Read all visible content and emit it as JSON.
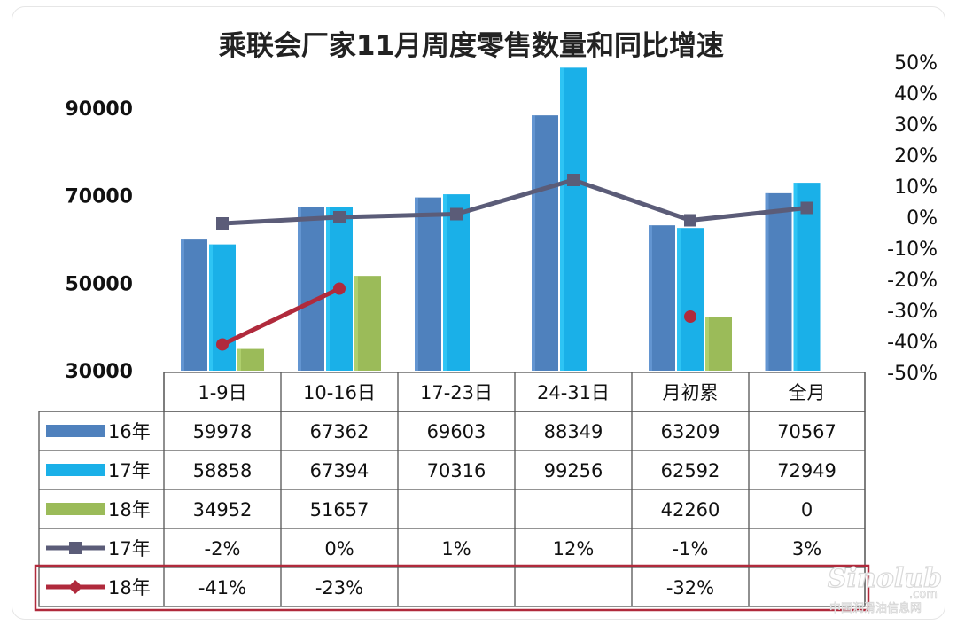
{
  "chart_data": {
    "type": "bar",
    "title": "乘联会厂家11月周度零售数量和同比增速",
    "categories": [
      "1-9日",
      "10-16日",
      "17-23日",
      "24-31日",
      "月初累",
      "全月"
    ],
    "y_axis": {
      "ticks": [
        "30000",
        "50000",
        "70000",
        "90000"
      ],
      "ylim": [
        30000,
        100000
      ]
    },
    "y2_axis": {
      "ticks": [
        "50%",
        "40%",
        "30%",
        "20%",
        "10%",
        "0%",
        "-10%",
        "-20%",
        "-30%",
        "-40%",
        "-50%"
      ],
      "ylim": [
        -50,
        50
      ]
    },
    "grid": false,
    "legend": "table",
    "series": [
      {
        "name": "16年",
        "kind": "bar",
        "color": "#4f81bd",
        "values": [
          59978,
          67362,
          69603,
          88349,
          63209,
          70567
        ],
        "labels": [
          "59978",
          "67362",
          "69603",
          "88349",
          "63209",
          "70567"
        ]
      },
      {
        "name": "17年",
        "kind": "bar",
        "color": "#1ab0e8",
        "values": [
          58858,
          67394,
          70316,
          99256,
          62592,
          72949
        ],
        "labels": [
          "58858",
          "67394",
          "70316",
          "99256",
          "62592",
          "72949"
        ]
      },
      {
        "name": "18年",
        "kind": "bar",
        "color": "#9bbb59",
        "values": [
          34952,
          51657,
          null,
          null,
          42260,
          0
        ],
        "labels": [
          "34952",
          "51657",
          "",
          "",
          "42260",
          "0"
        ]
      },
      {
        "name": "17年",
        "kind": "line",
        "marker": "square",
        "color": "#5b5c78",
        "values": [
          -2,
          0,
          1,
          12,
          -1,
          3
        ],
        "labels": [
          "-2%",
          "0%",
          "1%",
          "12%",
          "-1%",
          "3%"
        ]
      },
      {
        "name": "18年",
        "kind": "line",
        "marker": "diamond",
        "color": "#b02a3c",
        "values": [
          -41,
          -23,
          null,
          null,
          -32,
          null
        ],
        "labels": [
          "-41%",
          "-23%",
          "",
          "",
          "-32%",
          ""
        ]
      }
    ]
  },
  "watermark": {
    "logo": "Sinolub",
    "domain": ".com",
    "caption": "中国润滑油信息网"
  }
}
